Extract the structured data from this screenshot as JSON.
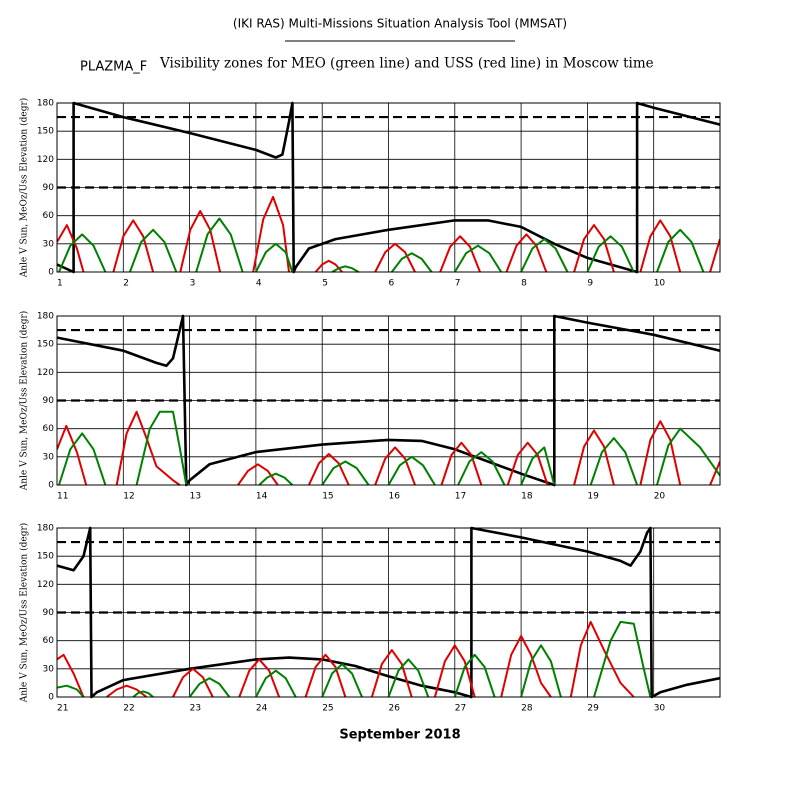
{
  "header": {
    "title": "(IKI RAS) Multi-Missions Situation Analysis Tool (MMSAT)",
    "mission": "PLAZMA_F",
    "subtitle": "Visibility zones for MEO (green line) and USS (red line) in Moscow time"
  },
  "footer": {
    "xlabel": "September 2018"
  },
  "chart_data": [
    {
      "type": "line",
      "ylabel": "Anle V Sun, MeOz/Uss Elevation (degr)",
      "xlim": [
        1,
        11
      ],
      "xticks": [
        1,
        2,
        3,
        4,
        5,
        6,
        7,
        8,
        9,
        10
      ],
      "ylim": [
        0,
        180
      ],
      "yticks": [
        0,
        30,
        60,
        90,
        120,
        150,
        180
      ],
      "grid": true,
      "hlines": [
        90,
        165
      ],
      "series": [
        {
          "color": "#000000",
          "x": [
            1.0,
            1.25,
            1.25,
            2.0,
            3.0,
            4.0,
            4.3,
            4.4,
            4.5,
            4.55,
            4.57,
            4.6,
            4.8,
            5.2,
            6.0,
            7.0,
            7.5,
            8.0,
            8.5,
            9.0,
            9.75,
            9.75,
            10.0,
            11.0
          ],
          "values": [
            8,
            0,
            180,
            165,
            148,
            130,
            122,
            125,
            160,
            180,
            0,
            5,
            25,
            35,
            45,
            55,
            55,
            48,
            30,
            15,
            0,
            180,
            175,
            157
          ]
        },
        {
          "color": "#e00000",
          "x": [
            1.0,
            1.15,
            1.3,
            1.4,
            null,
            1.85,
            2.0,
            2.15,
            2.3,
            2.45,
            null,
            2.86,
            3.01,
            3.16,
            3.31,
            3.46,
            null,
            3.96,
            4.11,
            4.26,
            4.41,
            4.5,
            null,
            4.9,
            5.0,
            5.1,
            5.2,
            5.3,
            null,
            5.8,
            5.95,
            6.1,
            6.25,
            6.4,
            null,
            6.78,
            6.93,
            7.08,
            7.23,
            7.38,
            null,
            7.78,
            7.93,
            8.08,
            8.23,
            8.38,
            null,
            8.8,
            8.95,
            9.1,
            9.25,
            9.4,
            null,
            9.8,
            9.95,
            10.1,
            10.25,
            10.4,
            null,
            10.85,
            11.0
          ],
          "values": [
            32,
            50,
            25,
            0,
            null,
            0,
            38,
            55,
            38,
            0,
            null,
            0,
            45,
            65,
            45,
            0,
            null,
            0,
            56,
            80,
            50,
            0,
            null,
            0,
            8,
            12,
            8,
            0,
            null,
            0,
            21,
            30,
            21,
            0,
            null,
            0,
            27,
            38,
            27,
            0,
            null,
            0,
            28,
            40,
            28,
            0,
            null,
            0,
            35,
            50,
            35,
            0,
            null,
            0,
            38,
            55,
            38,
            0,
            null,
            0,
            35
          ]
        },
        {
          "color": "#008000",
          "x": [
            1.03,
            1.2,
            1.38,
            1.55,
            1.73,
            null,
            2.1,
            2.27,
            2.45,
            2.62,
            2.8,
            null,
            3.1,
            3.27,
            3.45,
            3.62,
            3.8,
            null,
            4.0,
            4.15,
            4.3,
            4.45,
            4.55,
            null,
            5.15,
            5.25,
            5.35,
            5.45,
            5.55,
            null,
            6.05,
            6.2,
            6.35,
            6.5,
            6.65,
            null,
            7.0,
            7.17,
            7.35,
            7.52,
            7.7,
            null,
            8.0,
            8.17,
            8.35,
            8.52,
            8.7,
            null,
            9.0,
            9.17,
            9.35,
            9.52,
            9.7,
            null,
            10.05,
            10.22,
            10.4,
            10.57,
            10.75
          ],
          "values": [
            0,
            28,
            40,
            28,
            0,
            null,
            0,
            32,
            45,
            32,
            0,
            null,
            0,
            40,
            57,
            40,
            0,
            null,
            0,
            21,
            30,
            21,
            0,
            null,
            0,
            4,
            6,
            4,
            0,
            null,
            0,
            14,
            20,
            14,
            0,
            null,
            0,
            20,
            28,
            20,
            0,
            null,
            0,
            25,
            35,
            25,
            0,
            null,
            0,
            27,
            38,
            27,
            0,
            null,
            0,
            32,
            45,
            32,
            0
          ]
        }
      ]
    },
    {
      "type": "line",
      "ylabel": "Anle V Sun, MeOz/Uss Elevation (degr)",
      "xlim": [
        11,
        21
      ],
      "xticks": [
        11,
        12,
        13,
        14,
        15,
        16,
        17,
        18,
        19,
        20
      ],
      "ylim": [
        0,
        180
      ],
      "yticks": [
        0,
        30,
        60,
        90,
        120,
        150,
        180
      ],
      "grid": true,
      "hlines": [
        90,
        165
      ],
      "series": [
        {
          "color": "#000000",
          "x": [
            11.0,
            12.0,
            12.5,
            12.65,
            12.75,
            12.85,
            12.9,
            12.95,
            13.0,
            13.3,
            14.0,
            15.0,
            16.0,
            16.5,
            17.0,
            17.5,
            18.0,
            18.5,
            18.5,
            19.0,
            20.0,
            21.0
          ],
          "values": [
            157,
            143,
            130,
            127,
            135,
            165,
            180,
            0,
            5,
            22,
            35,
            43,
            48,
            47,
            38,
            25,
            12,
            0,
            180,
            173,
            160,
            143
          ]
        },
        {
          "color": "#e00000",
          "x": [
            11.0,
            11.14,
            11.3,
            11.44,
            null,
            11.9,
            12.05,
            12.2,
            12.35,
            12.5,
            12.75,
            12.85,
            null,
            13.73,
            13.88,
            14.03,
            14.18,
            14.33,
            null,
            14.8,
            14.95,
            15.1,
            15.25,
            15.4,
            null,
            15.8,
            15.95,
            16.1,
            16.25,
            16.4,
            null,
            16.8,
            16.95,
            17.1,
            17.25,
            17.4,
            null,
            17.8,
            17.95,
            18.1,
            18.25,
            18.4,
            null,
            18.8,
            18.95,
            19.1,
            19.25,
            19.4,
            null,
            19.8,
            19.95,
            20.1,
            20.25,
            20.4,
            null,
            20.85,
            21.0
          ],
          "values": [
            38,
            63,
            35,
            0,
            null,
            0,
            55,
            78,
            50,
            20,
            5,
            0,
            null,
            0,
            15,
            22,
            15,
            0,
            null,
            0,
            23,
            33,
            23,
            0,
            null,
            0,
            28,
            40,
            28,
            0,
            null,
            0,
            32,
            45,
            32,
            0,
            null,
            0,
            32,
            45,
            32,
            0,
            null,
            0,
            41,
            58,
            41,
            0,
            null,
            0,
            48,
            68,
            48,
            0,
            null,
            0,
            25
          ]
        },
        {
          "color": "#008000",
          "x": [
            11.03,
            11.2,
            11.38,
            11.55,
            11.73,
            null,
            12.2,
            12.4,
            12.55,
            12.75,
            12.85,
            12.95,
            null,
            14.05,
            14.17,
            14.3,
            14.43,
            14.55,
            null,
            15.0,
            15.17,
            15.35,
            15.52,
            15.7,
            null,
            16.0,
            16.17,
            16.35,
            16.52,
            16.7,
            null,
            17.05,
            17.22,
            17.4,
            17.57,
            17.75,
            null,
            18.0,
            18.17,
            18.35,
            18.5,
            null,
            19.05,
            19.22,
            19.4,
            19.57,
            19.75,
            null,
            20.05,
            20.22,
            20.4,
            20.7,
            21.0
          ],
          "values": [
            0,
            38,
            55,
            38,
            0,
            null,
            0,
            60,
            78,
            78,
            40,
            0,
            null,
            0,
            8,
            12,
            8,
            0,
            null,
            0,
            18,
            25,
            18,
            0,
            null,
            0,
            21,
            30,
            21,
            0,
            null,
            0,
            25,
            35,
            25,
            0,
            null,
            0,
            28,
            40,
            0,
            null,
            0,
            35,
            50,
            35,
            0,
            null,
            0,
            42,
            60,
            40,
            10
          ]
        }
      ]
    },
    {
      "type": "line",
      "ylabel": "Anle V Sun, MeOz/Uss Elevation (degr)",
      "xlim": [
        21,
        31
      ],
      "xticks": [
        21,
        22,
        23,
        24,
        25,
        26,
        27,
        28,
        29,
        30
      ],
      "ylim": [
        0,
        180
      ],
      "yticks": [
        0,
        30,
        60,
        90,
        120,
        150,
        180
      ],
      "grid": true,
      "hlines": [
        90,
        165
      ],
      "series": [
        {
          "color": "#000000",
          "x": [
            21.0,
            21.25,
            21.4,
            21.5,
            21.52,
            21.6,
            22.0,
            23.0,
            24.0,
            24.5,
            25.0,
            25.5,
            26.0,
            26.5,
            27.0,
            27.25,
            27.25,
            28.0,
            29.0,
            29.5,
            29.65,
            29.8,
            29.9,
            29.95,
            29.97,
            30.1,
            30.5,
            31.0
          ],
          "values": [
            140,
            135,
            150,
            180,
            0,
            5,
            18,
            30,
            40,
            42,
            40,
            33,
            22,
            12,
            5,
            0,
            180,
            170,
            155,
            145,
            140,
            155,
            175,
            180,
            0,
            5,
            13,
            20
          ]
        },
        {
          "color": "#e00000",
          "x": [
            21.0,
            21.1,
            21.25,
            21.4,
            null,
            21.75,
            21.9,
            22.05,
            22.2,
            22.35,
            null,
            22.75,
            22.9,
            23.05,
            23.2,
            23.35,
            null,
            23.75,
            23.9,
            24.05,
            24.2,
            24.35,
            null,
            24.75,
            24.9,
            25.05,
            25.2,
            25.35,
            null,
            25.75,
            25.9,
            26.05,
            26.2,
            26.35,
            null,
            26.7,
            26.85,
            27.0,
            27.15,
            27.3,
            null,
            27.7,
            27.85,
            28.0,
            28.15,
            28.3,
            28.45,
            null,
            28.75,
            28.9,
            29.05,
            29.25,
            29.5,
            29.7
          ],
          "values": [
            40,
            45,
            25,
            0,
            null,
            0,
            8,
            12,
            8,
            0,
            null,
            0,
            21,
            30,
            21,
            0,
            null,
            0,
            28,
            40,
            28,
            0,
            null,
            0,
            32,
            45,
            32,
            0,
            null,
            0,
            35,
            50,
            35,
            0,
            null,
            0,
            38,
            55,
            38,
            0,
            null,
            0,
            45,
            65,
            45,
            15,
            0,
            null,
            0,
            55,
            80,
            50,
            15,
            0
          ]
        },
        {
          "color": "#008000",
          "x": [
            21.0,
            21.15,
            21.3,
            21.4,
            null,
            22.15,
            22.22,
            22.3,
            22.38,
            22.45,
            null,
            23.0,
            23.15,
            23.3,
            23.45,
            23.6,
            null,
            24.0,
            24.15,
            24.3,
            24.45,
            24.6,
            null,
            25.0,
            25.15,
            25.3,
            25.45,
            25.6,
            null,
            26.0,
            26.15,
            26.3,
            26.45,
            26.6,
            null,
            27.0,
            27.15,
            27.3,
            27.45,
            27.6,
            null,
            28.0,
            28.15,
            28.3,
            28.45,
            28.6,
            null,
            29.1,
            29.35,
            29.5,
            29.7,
            29.85,
            29.95
          ],
          "values": [
            10,
            12,
            8,
            0,
            null,
            0,
            4,
            6,
            4,
            0,
            null,
            0,
            14,
            20,
            14,
            0,
            null,
            0,
            20,
            28,
            20,
            0,
            null,
            0,
            25,
            35,
            25,
            0,
            null,
            0,
            28,
            40,
            28,
            0,
            null,
            0,
            32,
            45,
            32,
            0,
            null,
            0,
            38,
            55,
            38,
            0,
            null,
            0,
            60,
            80,
            78,
            30,
            0
          ]
        }
      ]
    }
  ]
}
